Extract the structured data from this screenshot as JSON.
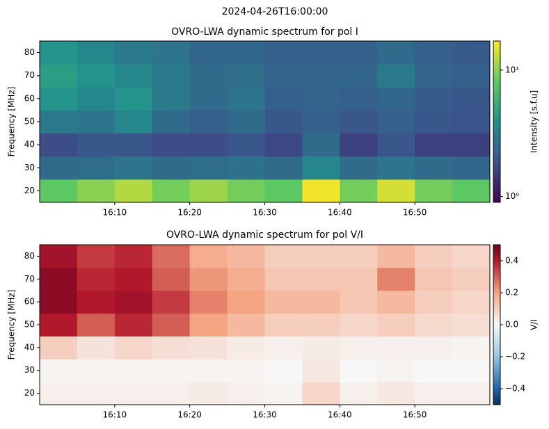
{
  "title": "2024-04-26T16:00:00",
  "chart_data": [
    {
      "type": "heatmap",
      "title": "OVRO-LWA dynamic spectrum for pol I",
      "ylabel": "Frequency [MHz]",
      "colorbar_label": "Intensity [s.f.u]",
      "colormap": "viridis",
      "color_log_scale": true,
      "x": [
        0,
        5,
        10,
        15,
        20,
        25,
        30,
        35,
        40,
        45,
        50,
        55,
        60
      ],
      "y": [
        15,
        25,
        35,
        45,
        55,
        65,
        75,
        85
      ],
      "xlim": [
        0,
        60
      ],
      "xticks": [
        {
          "value": 10,
          "label": "16:10"
        },
        {
          "value": 20,
          "label": "16:20"
        },
        {
          "value": 30,
          "label": "16:30"
        },
        {
          "value": 40,
          "label": "16:40"
        },
        {
          "value": 50,
          "label": "16:50"
        }
      ],
      "ylim": [
        15,
        85
      ],
      "yticks": [
        20,
        30,
        40,
        50,
        60,
        70,
        80
      ],
      "clim": [
        0.9,
        17
      ],
      "cticks": [
        {
          "value": 1,
          "label": "10⁰"
        },
        {
          "value": 10,
          "label": "10¹"
        }
      ],
      "values": [
        [
          8,
          10,
          12,
          9,
          11,
          9,
          8,
          16,
          9,
          14,
          9,
          8
        ],
        [
          2.5,
          2.6,
          2.8,
          2.5,
          2.6,
          2.7,
          2.5,
          3.5,
          2.5,
          2.8,
          2.5,
          2.4
        ],
        [
          1.8,
          2,
          2,
          1.8,
          1.8,
          2,
          1.7,
          2.5,
          1.6,
          2,
          1.6,
          1.6
        ],
        [
          3,
          2.8,
          3.5,
          2.5,
          2.2,
          2.5,
          2,
          2.2,
          2,
          2.2,
          2,
          1.9
        ],
        [
          4,
          3.5,
          4,
          3,
          2.5,
          2.8,
          2.2,
          2.3,
          2.2,
          2.4,
          2.1,
          2
        ],
        [
          4.5,
          4,
          3.5,
          3,
          2.5,
          2.6,
          2.3,
          2.3,
          2.4,
          3,
          2.3,
          2.2
        ],
        [
          4,
          3.5,
          3,
          2.8,
          2.4,
          2.4,
          2.2,
          2.2,
          2.2,
          2.5,
          2.2,
          2.1
        ]
      ]
    },
    {
      "type": "heatmap",
      "title": "OVRO-LWA dynamic spectrum for pol V/I",
      "ylabel": "Frequency [MHz]",
      "colorbar_label": "V/I",
      "colormap": "RdBu_r",
      "color_log_scale": false,
      "x": [
        0,
        5,
        10,
        15,
        20,
        25,
        30,
        35,
        40,
        45,
        50,
        55,
        60
      ],
      "y": [
        15,
        25,
        35,
        45,
        55,
        65,
        75,
        85
      ],
      "xlim": [
        0,
        60
      ],
      "xticks": [
        {
          "value": 10,
          "label": "16:10"
        },
        {
          "value": 20,
          "label": "16:20"
        },
        {
          "value": 30,
          "label": "16:30"
        },
        {
          "value": 40,
          "label": "16:40"
        },
        {
          "value": 50,
          "label": "16:50"
        }
      ],
      "ylim": [
        15,
        85
      ],
      "yticks": [
        20,
        30,
        40,
        50,
        60,
        70,
        80
      ],
      "clim": [
        -0.5,
        0.5
      ],
      "cticks": [
        {
          "value": -0.4,
          "label": "−0.4"
        },
        {
          "value": -0.2,
          "label": "−0.2"
        },
        {
          "value": 0,
          "label": "0.0"
        },
        {
          "value": 0.2,
          "label": "0.2"
        },
        {
          "value": 0.4,
          "label": "0.4"
        }
      ],
      "values": [
        [
          0.02,
          0.02,
          0.02,
          0.02,
          0.03,
          0.02,
          0.01,
          0.08,
          0.02,
          0.04,
          0.02,
          0.02
        ],
        [
          0.01,
          0.01,
          0.01,
          0.01,
          0.01,
          0.01,
          0,
          0.04,
          0,
          0.01,
          0,
          0
        ],
        [
          0.1,
          0.05,
          0.08,
          0.06,
          0.05,
          0.03,
          0.02,
          0.03,
          0.02,
          0.02,
          0.02,
          0.01
        ],
        [
          0.4,
          0.3,
          0.38,
          0.3,
          0.2,
          0.15,
          0.1,
          0.1,
          0.08,
          0.1,
          0.07,
          0.06
        ],
        [
          0.45,
          0.4,
          0.42,
          0.35,
          0.25,
          0.2,
          0.15,
          0.15,
          0.12,
          0.15,
          0.1,
          0.08
        ],
        [
          0.45,
          0.38,
          0.4,
          0.3,
          0.22,
          0.18,
          0.12,
          0.12,
          0.12,
          0.25,
          0.12,
          0.1
        ],
        [
          0.42,
          0.35,
          0.38,
          0.28,
          0.18,
          0.15,
          0.1,
          0.1,
          0.1,
          0.15,
          0.1,
          0.08
        ]
      ]
    }
  ]
}
